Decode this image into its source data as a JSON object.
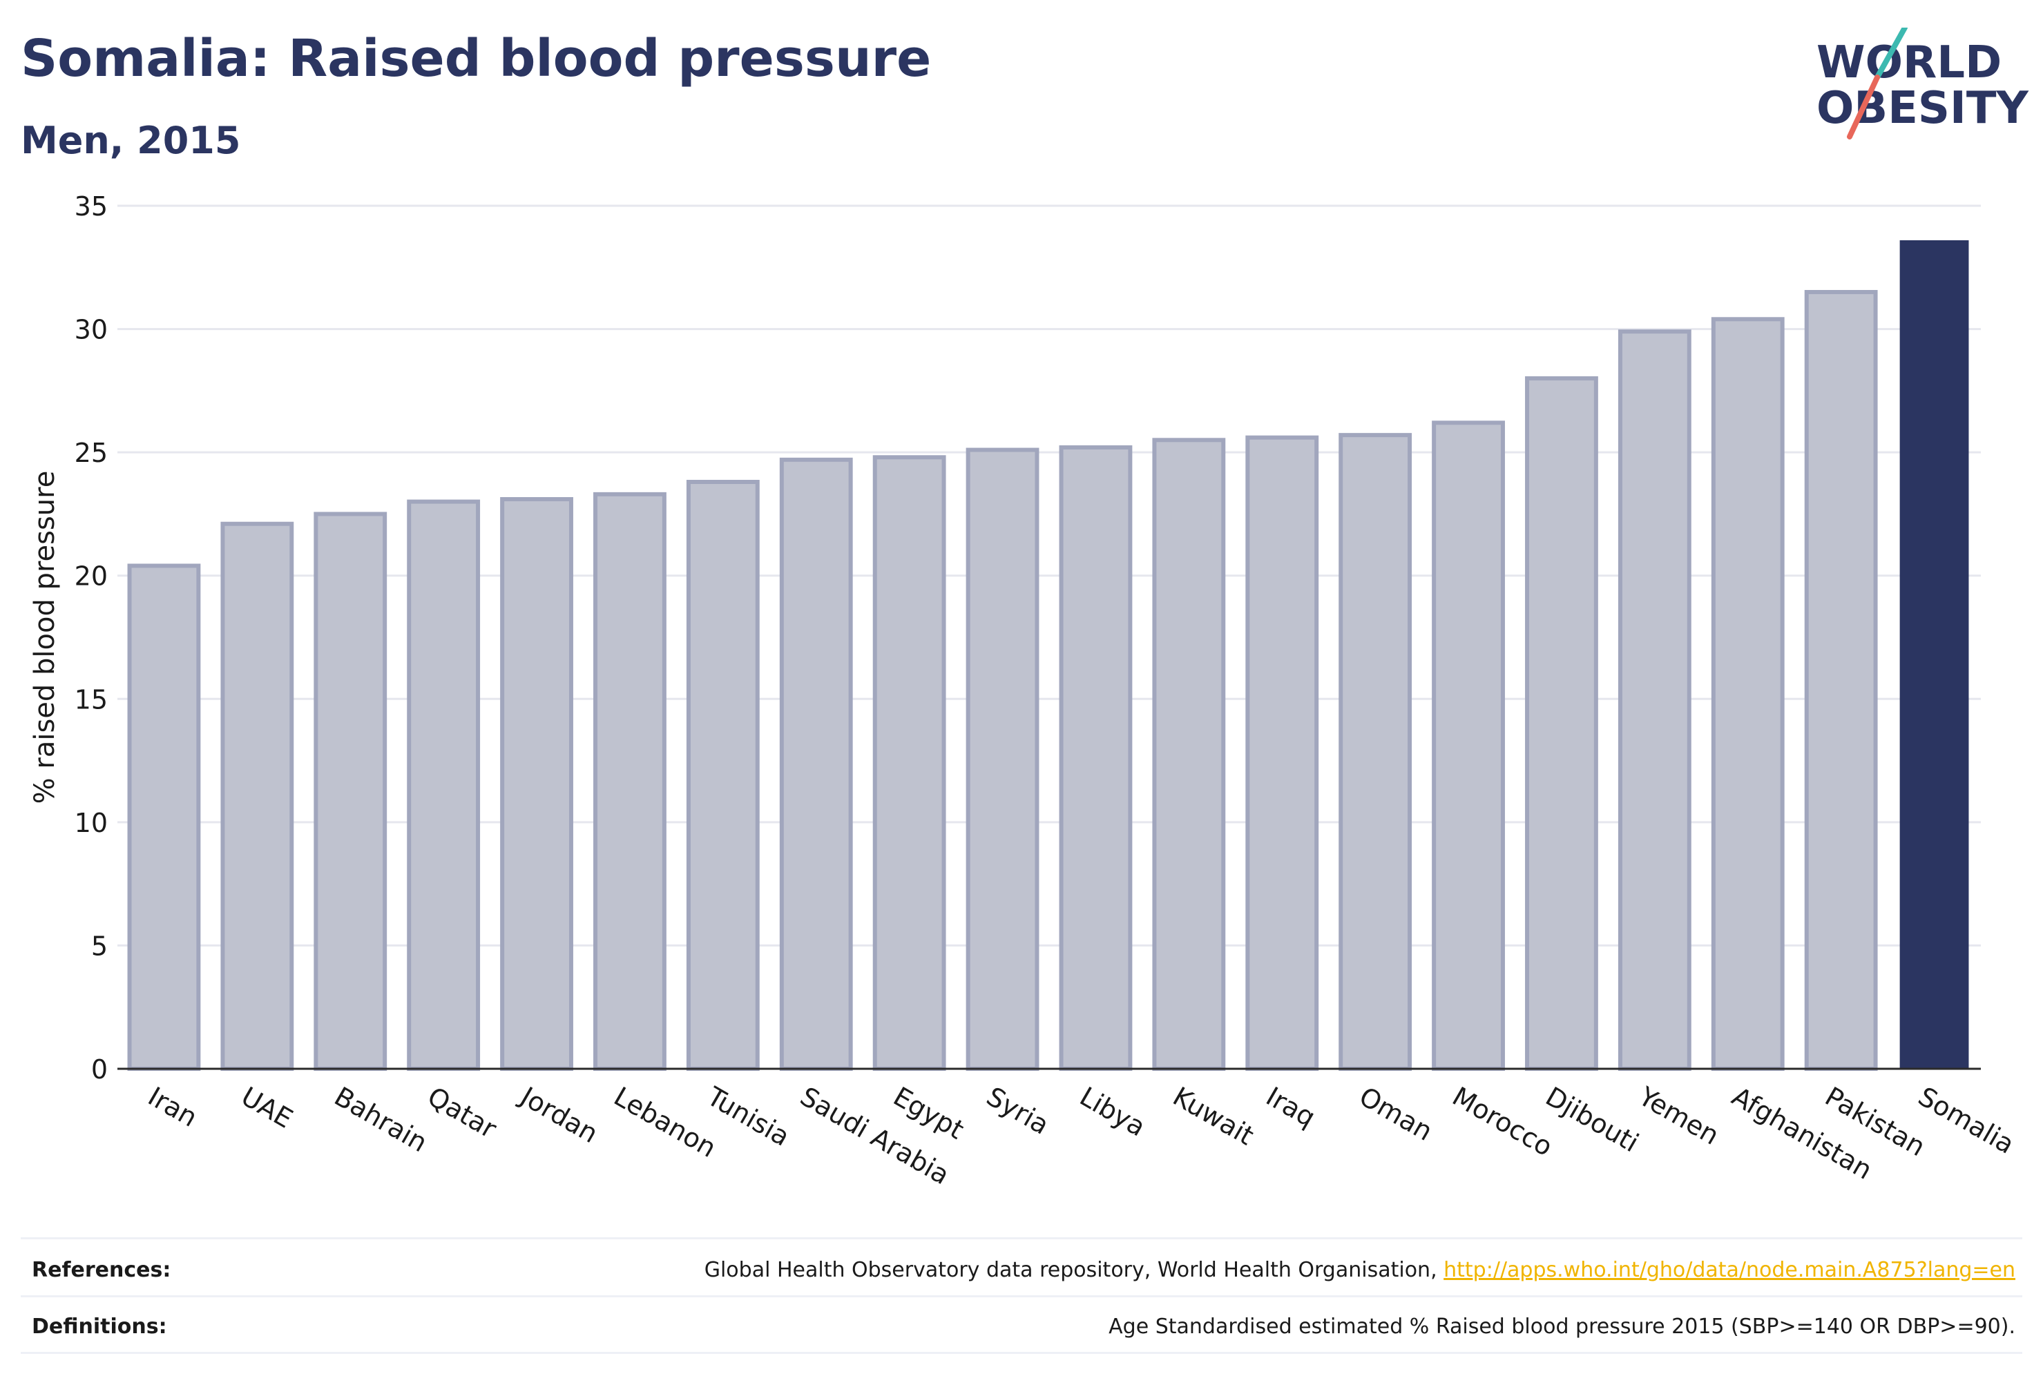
{
  "header": {
    "title": "Somalia: Raised blood pressure",
    "subtitle": "Men, 2015"
  },
  "logo": {
    "line1": "WORLD",
    "line2": "OBESITY"
  },
  "chart_data": {
    "type": "bar",
    "ylabel": "% raised blood pressure",
    "ylim": [
      0,
      35
    ],
    "yticks": [
      0,
      5,
      10,
      15,
      20,
      25,
      30,
      35
    ],
    "grid": true,
    "categories": [
      "Iran",
      "UAE",
      "Bahrain",
      "Qatar",
      "Jordan",
      "Lebanon",
      "Tunisia",
      "Saudi Arabia",
      "Egypt",
      "Syria",
      "Libya",
      "Kuwait",
      "Iraq",
      "Oman",
      "Morocco",
      "Djibouti",
      "Yemen",
      "Afghanistan",
      "Pakistan",
      "Somalia"
    ],
    "values": [
      20.4,
      22.1,
      22.5,
      23.0,
      23.1,
      23.3,
      23.8,
      24.7,
      24.8,
      25.1,
      25.2,
      25.5,
      25.6,
      25.7,
      26.2,
      28.0,
      29.9,
      30.4,
      31.5,
      33.6
    ],
    "highlight": "Somalia",
    "colors": {
      "bar": "#bfc2cf",
      "bar_edge": "#a1a6bd",
      "highlight": "#2b3561",
      "grid": "#e6e7ee"
    }
  },
  "footer": {
    "references_label": "References:",
    "references_text": "Global Health Observatory data repository, World Health Organisation, ",
    "references_link": "http://apps.who.int/gho/data/node.main.A875?lang=en",
    "definitions_label": "Definitions:",
    "definitions_text": "Age Standardised estimated % Raised blood pressure 2015 (SBP>=140 OR DBP>=90)."
  }
}
